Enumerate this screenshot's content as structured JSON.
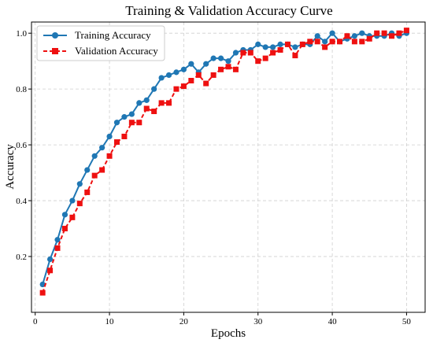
{
  "chart_data": {
    "type": "line",
    "title": "Training & Validation Accuracy Curve",
    "xlabel": "Epochs",
    "ylabel": "Accuracy",
    "xlim": [
      -0.5,
      52.5
    ],
    "ylim": [
      0.0,
      1.04
    ],
    "xticks": [
      0,
      10,
      20,
      30,
      40,
      50
    ],
    "yticks": [
      0.2,
      0.4,
      0.6,
      0.8,
      1.0
    ],
    "grid": true,
    "legend_position": "top-left",
    "x": [
      1,
      2,
      3,
      4,
      5,
      6,
      7,
      8,
      9,
      10,
      11,
      12,
      13,
      14,
      15,
      16,
      17,
      18,
      19,
      20,
      21,
      22,
      23,
      24,
      25,
      26,
      27,
      28,
      29,
      30,
      31,
      32,
      33,
      34,
      35,
      36,
      37,
      38,
      39,
      40,
      41,
      42,
      43,
      44,
      45,
      46,
      47,
      48,
      49,
      50
    ],
    "series": [
      {
        "name": "Training Accuracy",
        "color": "#1f77b4",
        "marker": "circle",
        "line_style": "solid",
        "values": [
          0.1,
          0.19,
          0.26,
          0.35,
          0.4,
          0.46,
          0.51,
          0.56,
          0.59,
          0.63,
          0.68,
          0.7,
          0.71,
          0.75,
          0.76,
          0.8,
          0.84,
          0.85,
          0.86,
          0.87,
          0.89,
          0.86,
          0.89,
          0.91,
          0.91,
          0.9,
          0.93,
          0.94,
          0.94,
          0.96,
          0.95,
          0.95,
          0.96,
          0.96,
          0.95,
          0.96,
          0.96,
          0.99,
          0.97,
          1.0,
          0.97,
          0.98,
          0.99,
          1.0,
          0.99,
          0.99,
          0.99,
          1.0,
          0.99,
          1.0
        ]
      },
      {
        "name": "Validation Accuracy",
        "color": "#ee1010",
        "marker": "square",
        "line_style": "dashed",
        "values": [
          0.07,
          0.15,
          0.23,
          0.3,
          0.34,
          0.39,
          0.43,
          0.49,
          0.51,
          0.56,
          0.61,
          0.63,
          0.68,
          0.68,
          0.73,
          0.72,
          0.75,
          0.75,
          0.8,
          0.81,
          0.83,
          0.85,
          0.82,
          0.85,
          0.87,
          0.88,
          0.87,
          0.93,
          0.93,
          0.9,
          0.91,
          0.93,
          0.94,
          0.96,
          0.92,
          0.96,
          0.97,
          0.97,
          0.95,
          0.97,
          0.97,
          0.99,
          0.97,
          0.97,
          0.98,
          1.0,
          1.0,
          0.99,
          1.0,
          1.01
        ]
      }
    ]
  }
}
